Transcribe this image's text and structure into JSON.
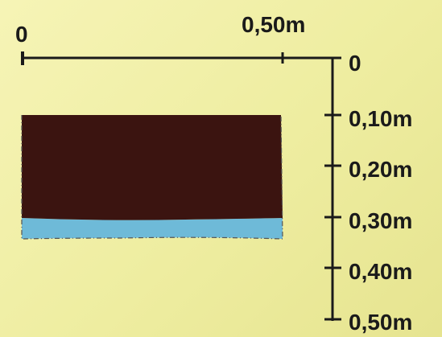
{
  "horizontal_scale": {
    "start_label": "0",
    "end_label": "0,50m"
  },
  "vertical_scale": {
    "labels": [
      "0",
      "0,10m",
      "0,20m",
      "0,30m",
      "0,40m",
      "0,50m"
    ]
  },
  "layers": [
    {
      "name": "dark layer",
      "color": "#3b1410"
    },
    {
      "name": "light blue layer",
      "color": "#6ebad8"
    }
  ],
  "colors": {
    "background": "#f3f2b0",
    "scale_lines": "#1a1a1a"
  }
}
